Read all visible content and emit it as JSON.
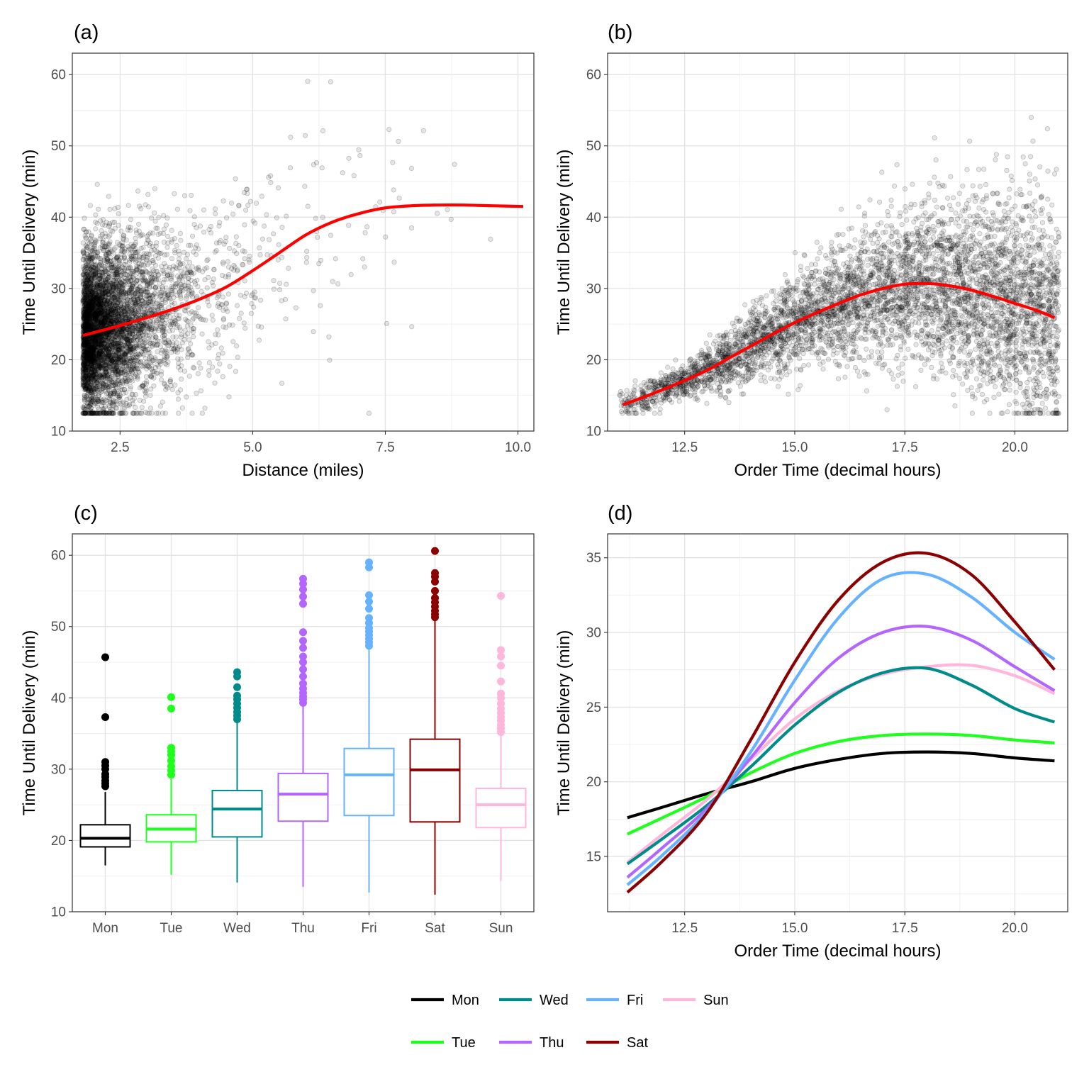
{
  "chart_data": [
    {
      "tag": "(a)",
      "type": "scatter",
      "xlabel": "Distance (miles)",
      "ylabel": "Time Until Delivery (min)",
      "xlim": [
        1.6,
        10.3
      ],
      "ylim": [
        10,
        63
      ],
      "xticks": [
        2.5,
        5.0,
        7.5,
        10.0
      ],
      "xtick_labels": [
        "2.5",
        "5.0",
        "7.5",
        "10.0"
      ],
      "yticks": [
        10,
        20,
        30,
        40,
        50,
        60
      ],
      "ytick_labels": [
        "10",
        "20",
        "30",
        "40",
        "50",
        "60"
      ],
      "grid": true,
      "point_color": "#000000",
      "point_count_approx": 5000,
      "smooth_color": "#ff0000",
      "smooth": {
        "x": [
          1.8,
          2.5,
          3.0,
          3.5,
          4.0,
          4.5,
          5.0,
          5.5,
          6.0,
          6.5,
          7.0,
          7.5,
          8.0,
          8.5,
          9.0,
          9.5,
          10.1
        ],
        "y": [
          23.4,
          24.8,
          25.9,
          27.1,
          28.5,
          30.2,
          32.5,
          35.0,
          37.5,
          39.3,
          40.5,
          41.3,
          41.6,
          41.7,
          41.7,
          41.6,
          41.5
        ]
      }
    },
    {
      "tag": "(b)",
      "type": "scatter",
      "xlabel": "Order Time (decimal hours)",
      "ylabel": "Time Until Delivery (min)",
      "xlim": [
        10.75,
        21.2
      ],
      "ylim": [
        10,
        63
      ],
      "xticks": [
        12.5,
        15.0,
        17.5,
        20.0
      ],
      "xtick_labels": [
        "12.5",
        "15.0",
        "17.5",
        "20.0"
      ],
      "yticks": [
        10,
        20,
        30,
        40,
        50,
        60
      ],
      "ytick_labels": [
        "10",
        "20",
        "30",
        "40",
        "50",
        "60"
      ],
      "grid": true,
      "point_color": "#000000",
      "point_count_approx": 5000,
      "smooth_color": "#ff0000",
      "smooth": {
        "x": [
          11.1,
          11.5,
          12.0,
          12.5,
          13.0,
          13.5,
          14.0,
          14.5,
          15.0,
          15.5,
          16.0,
          16.5,
          17.0,
          17.5,
          18.0,
          18.5,
          19.0,
          19.5,
          20.0,
          20.5,
          20.9
        ],
        "y": [
          13.7,
          14.6,
          15.8,
          17.1,
          18.5,
          20.2,
          21.9,
          23.6,
          25.2,
          26.6,
          27.9,
          29.1,
          30.0,
          30.6,
          30.7,
          30.4,
          29.8,
          28.9,
          27.9,
          26.9,
          25.9
        ]
      }
    },
    {
      "tag": "(c)",
      "type": "box",
      "ylabel": "Time Until Delivery (min)",
      "categories": [
        "Mon",
        "Tue",
        "Wed",
        "Thu",
        "Fri",
        "Sat",
        "Sun"
      ],
      "ylim": [
        10,
        63
      ],
      "yticks": [
        10,
        20,
        30,
        40,
        50,
        60
      ],
      "ytick_labels": [
        "10",
        "20",
        "30",
        "40",
        "50",
        "60"
      ],
      "grid": true,
      "boxes": [
        {
          "name": "Mon",
          "color": "#000000",
          "whisker_low": 16.5,
          "q1": 19.1,
          "median": 20.3,
          "q3": 22.2,
          "whisker_high": 26.8,
          "outliers": [
            27.6,
            28.0,
            28.4,
            28.9,
            29.3,
            30.0,
            30.5,
            31.0,
            37.3,
            45.7
          ]
        },
        {
          "name": "Tue",
          "color": "#1eff1e",
          "whisker_low": 15.2,
          "q1": 19.8,
          "median": 21.6,
          "q3": 23.6,
          "whisker_high": 28.6,
          "outliers": [
            29.2,
            29.8,
            30.4,
            31.2,
            32.0,
            32.5,
            33.0,
            38.5,
            40.1
          ]
        },
        {
          "name": "Wed",
          "color": "#008b8b",
          "whisker_low": 14.1,
          "q1": 20.5,
          "median": 24.4,
          "q3": 27.0,
          "whisker_high": 36.6,
          "outliers": [
            37.0,
            37.5,
            38.0,
            38.6,
            39.2,
            39.8,
            40.3,
            41.5,
            43.0,
            43.6
          ]
        },
        {
          "name": "Thu",
          "color": "#b266ff",
          "whisker_low": 13.5,
          "q1": 22.7,
          "median": 26.5,
          "q3": 29.4,
          "whisker_high": 39.0,
          "outliers": [
            39.3,
            39.8,
            40.2,
            40.7,
            41.3,
            42.0,
            43.0,
            44.0,
            45.0,
            45.8,
            47.0,
            48.0,
            49.2,
            53.2,
            54.2,
            55.2,
            56.0,
            56.7
          ]
        },
        {
          "name": "Fri",
          "color": "#66b2ff",
          "whisker_low": 12.7,
          "q1": 23.5,
          "median": 29.2,
          "q3": 32.9,
          "whisker_high": 46.8,
          "outliers": [
            47.3,
            47.8,
            48.3,
            48.8,
            49.3,
            49.8,
            50.5,
            51.2,
            52.5,
            53.5,
            54.4,
            58.3,
            59.0
          ]
        },
        {
          "name": "Sat",
          "color": "#8b0000",
          "whisker_low": 12.4,
          "q1": 22.6,
          "median": 29.9,
          "q3": 34.2,
          "whisker_high": 51.0,
          "outliers": [
            51.3,
            51.7,
            52.2,
            52.8,
            53.4,
            54.0,
            55.0,
            56.3,
            57.0,
            57.5,
            60.6
          ]
        },
        {
          "name": "Sun",
          "color": "#ffb6db",
          "whisker_low": 14.3,
          "q1": 21.8,
          "median": 25.0,
          "q3": 27.3,
          "whisker_high": 34.8,
          "outliers": [
            35.2,
            35.7,
            36.2,
            36.8,
            37.3,
            37.9,
            38.5,
            39.2,
            40.0,
            40.6,
            42.3,
            44.5,
            45.8,
            46.7,
            54.3
          ]
        }
      ]
    },
    {
      "tag": "(d)",
      "type": "line",
      "xlabel": "Order Time (decimal hours)",
      "ylabel": "Time Until Delivery (min)",
      "xlim": [
        10.75,
        21.2
      ],
      "ylim": [
        11.3,
        36.6
      ],
      "xticks": [
        12.5,
        15.0,
        17.5,
        20.0
      ],
      "xtick_labels": [
        "12.5",
        "15.0",
        "17.5",
        "20.0"
      ],
      "yticks": [
        15,
        20,
        25,
        30,
        35
      ],
      "ytick_labels": [
        "15",
        "20",
        "25",
        "30",
        "35"
      ],
      "grid": true,
      "x": [
        11.2,
        12.0,
        13.0,
        14.0,
        15.0,
        16.0,
        17.0,
        18.0,
        19.0,
        20.0,
        20.9
      ],
      "series": [
        {
          "name": "Mon",
          "color": "#000000",
          "values": [
            17.6,
            18.3,
            19.2,
            20.0,
            20.9,
            21.5,
            21.9,
            22.0,
            21.9,
            21.6,
            21.4
          ]
        },
        {
          "name": "Tue",
          "color": "#1eff1e",
          "values": [
            16.5,
            17.6,
            19.0,
            20.6,
            21.9,
            22.7,
            23.1,
            23.2,
            23.1,
            22.8,
            22.6
          ]
        },
        {
          "name": "Wed",
          "color": "#008b8b",
          "values": [
            14.5,
            16.2,
            18.4,
            21.0,
            23.8,
            26.0,
            27.3,
            27.6,
            26.5,
            24.9,
            24.0
          ]
        },
        {
          "name": "Thu",
          "color": "#b266ff",
          "values": [
            13.6,
            15.6,
            18.2,
            21.6,
            25.3,
            28.3,
            30.0,
            30.4,
            29.5,
            27.7,
            26.1
          ]
        },
        {
          "name": "Fri",
          "color": "#66b2ff",
          "values": [
            13.1,
            15.1,
            18.0,
            22.0,
            26.8,
            31.0,
            33.6,
            33.9,
            32.4,
            30.0,
            28.2
          ]
        },
        {
          "name": "Sat",
          "color": "#8b0000",
          "values": [
            12.6,
            14.7,
            17.9,
            22.8,
            28.0,
            32.2,
            34.7,
            35.3,
            33.9,
            30.7,
            27.5
          ]
        },
        {
          "name": "Sun",
          "color": "#ffb6db",
          "values": [
            14.6,
            16.5,
            18.8,
            21.5,
            24.2,
            26.1,
            27.2,
            27.7,
            27.8,
            27.1,
            25.9
          ]
        }
      ]
    }
  ],
  "legend": {
    "placement": "bottom",
    "items": [
      {
        "label": "Mon",
        "color": "#000000"
      },
      {
        "label": "Wed",
        "color": "#008b8b"
      },
      {
        "label": "Fri",
        "color": "#66b2ff"
      },
      {
        "label": "Sun",
        "color": "#ffb6db"
      },
      {
        "label": "Tue",
        "color": "#1eff1e"
      },
      {
        "label": "Thu",
        "color": "#b266ff"
      },
      {
        "label": "Sat",
        "color": "#8b0000"
      }
    ]
  }
}
